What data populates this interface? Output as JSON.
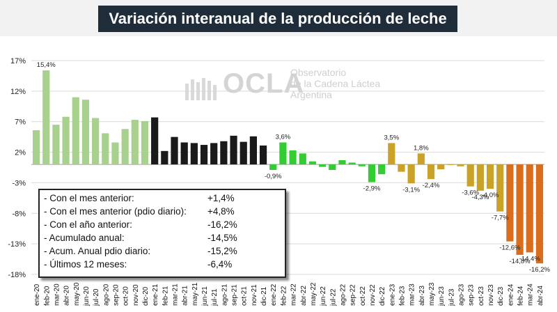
{
  "title": "Variación interanual de la producción de leche",
  "logo": {
    "name": "OCLA",
    "line1": "Observatorio",
    "line2": "de la Cadena Láctea",
    "line3": "Argentina"
  },
  "stats": [
    {
      "label": "- Con el mes anterior:",
      "value": "+1,4%"
    },
    {
      "label": "- Con el mes anterior (pdio diario):",
      "value": "+4,8%"
    },
    {
      "label": "- Con el año anterior:",
      "value": "-16,2%"
    },
    {
      "label": "- Acumulado anual:",
      "value": "-14,5%"
    },
    {
      "label": "- Acum. Anual pdio diario:",
      "value": "-15,2%"
    },
    {
      "label": "- Últimos 12 meses:",
      "value": "-6,4%"
    }
  ],
  "chart_data": {
    "type": "bar",
    "ylim": [
      -18,
      17
    ],
    "yticks": [
      17,
      12,
      7,
      2,
      -3,
      -8,
      -13,
      -18
    ],
    "ytick_labels": [
      "17%",
      "12%",
      "7%",
      "2%",
      "-3%",
      "-8%",
      "-13%",
      "-18%"
    ],
    "grid": true,
    "categories": [
      "ene-20",
      "feb-20",
      "mar-20",
      "abr-20",
      "may-20",
      "jun-20",
      "jul-20",
      "ago-20",
      "sep-20",
      "oct-20",
      "nov-20",
      "dic-20",
      "ene-21",
      "feb-21",
      "mar-21",
      "abr-21",
      "may-21",
      "jun-21",
      "jul-21",
      "ago-21",
      "sep-21",
      "oct-21",
      "nov-21",
      "dic-21",
      "ene-22",
      "feb-22",
      "mar-22",
      "abr-22",
      "may-22",
      "jun-22",
      "jul-22",
      "ago-22",
      "sep-22",
      "oct-22",
      "nov-22",
      "dic-22",
      "ene-23",
      "feb-23",
      "mar-23",
      "abr-23",
      "may-23",
      "jun-23",
      "jul-23",
      "ago-23",
      "sep-23",
      "oct-23",
      "nov-23",
      "dic-23",
      "ene-24",
      "feb-24",
      "mar-24",
      "abr-24"
    ],
    "values": [
      5.6,
      15.4,
      6.5,
      7.8,
      11.0,
      10.6,
      7.6,
      5.1,
      3.6,
      5.8,
      7.3,
      7.1,
      7.7,
      2.2,
      4.5,
      3.6,
      3.5,
      3.2,
      3.5,
      3.8,
      4.7,
      3.7,
      4.6,
      3.1,
      -0.9,
      3.6,
      2.3,
      1.8,
      0.5,
      -0.4,
      -0.9,
      0.7,
      0.3,
      -0.3,
      -2.9,
      -1.6,
      3.5,
      -1.2,
      -3.1,
      1.8,
      -2.4,
      -0.8,
      -0.1,
      -0.3,
      -3.6,
      -4.3,
      -4.0,
      -7.7,
      -12.6,
      -14.8,
      -14.4,
      -16.2
    ],
    "colors": {
      "2020": "#a9d18e",
      "2021": "#1a1a1a",
      "2022": "#33cc33",
      "2023": "#c9a227",
      "2024": "#d96d1c"
    },
    "data_labels": [
      {
        "category": "feb-20",
        "text": "15,4%"
      },
      {
        "category": "ene-22",
        "text": "-0,9%"
      },
      {
        "category": "feb-22",
        "text": "3,6%"
      },
      {
        "category": "nov-22",
        "text": "-2,9%"
      },
      {
        "category": "ene-23",
        "text": "3,5%"
      },
      {
        "category": "mar-23",
        "text": "-3,1%"
      },
      {
        "category": "abr-23",
        "text": "1,8%"
      },
      {
        "category": "may-23",
        "text": "-2,4%"
      },
      {
        "category": "sep-23",
        "text": "-3,6%"
      },
      {
        "category": "oct-23",
        "text": "-4,3%"
      },
      {
        "category": "nov-23",
        "text": "-4,0%"
      },
      {
        "category": "dic-23",
        "text": "-7,7%"
      },
      {
        "category": "ene-24",
        "text": "-12,6%"
      },
      {
        "category": "feb-24",
        "text": "-14,8%"
      },
      {
        "category": "mar-24",
        "text": "-14,4%"
      },
      {
        "category": "abr-24",
        "text": "-16,2%"
      }
    ]
  }
}
